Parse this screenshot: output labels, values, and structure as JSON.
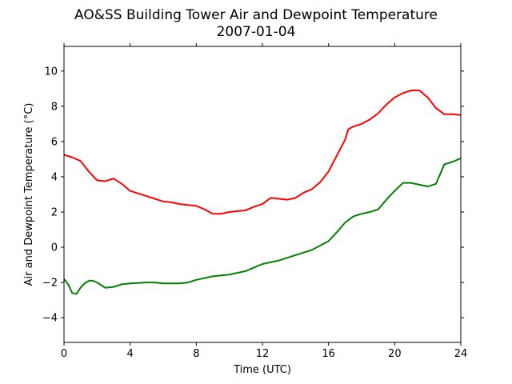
{
  "chart_data": {
    "type": "line",
    "title": "AO&SS Building Tower Air and Dewpoint Temperature",
    "subtitle": "2007-01-04",
    "xlabel": "Time (UTC)",
    "ylabel": "Air and Dewpoint Temperature (°C)",
    "xlim": [
      0,
      24
    ],
    "ylim": [
      -5.4,
      11.4
    ],
    "xticks": [
      0,
      4,
      8,
      12,
      16,
      20,
      24
    ],
    "yticks": [
      -4,
      -2,
      0,
      2,
      4,
      6,
      8,
      10
    ],
    "grid": false,
    "legend": "none",
    "series": [
      {
        "color": "#ff0000",
        "x": [
          0,
          0.5,
          1,
          1.5,
          2,
          2.5,
          3,
          3.5,
          4,
          4.5,
          5,
          5.5,
          6,
          6.5,
          7,
          7.5,
          8,
          8.5,
          9,
          9.5,
          10,
          10.5,
          11,
          11.5,
          12,
          12.5,
          13,
          13.5,
          14,
          14.5,
          15,
          15.5,
          16,
          16.5,
          17,
          17.2,
          17.5,
          18,
          18.5,
          19,
          19.5,
          20,
          20.5,
          21,
          21.5,
          22,
          22.5,
          23,
          23.5,
          24
        ],
        "y": [
          5.25,
          5.1,
          4.9,
          4.3,
          3.8,
          3.75,
          3.9,
          3.6,
          3.2,
          3.05,
          2.9,
          2.75,
          2.6,
          2.55,
          2.45,
          2.4,
          2.35,
          2.15,
          1.9,
          1.9,
          2.0,
          2.05,
          2.1,
          2.3,
          2.45,
          2.8,
          2.75,
          2.7,
          2.8,
          3.1,
          3.3,
          3.7,
          4.3,
          5.2,
          6.1,
          6.7,
          6.85,
          7.0,
          7.25,
          7.6,
          8.1,
          8.5,
          8.75,
          8.9,
          8.9,
          8.5,
          7.9,
          7.55,
          7.55,
          7.5
        ]
      },
      {
        "color": "#008000",
        "x": [
          0,
          0.25,
          0.5,
          0.75,
          1,
          1.25,
          1.5,
          1.75,
          2,
          2.5,
          3,
          3.5,
          4,
          5,
          5.5,
          6,
          7,
          7.5,
          8,
          9,
          10,
          11,
          12,
          13,
          14,
          15,
          16,
          16.5,
          17,
          17.5,
          18,
          18.5,
          19,
          19.5,
          20,
          20.5,
          21,
          21.5,
          22,
          22.5,
          23,
          23.5,
          24
        ],
        "y": [
          -1.8,
          -2.1,
          -2.6,
          -2.65,
          -2.3,
          -2.05,
          -1.9,
          -1.9,
          -2.0,
          -2.3,
          -2.25,
          -2.1,
          -2.05,
          -2.0,
          -2.0,
          -2.05,
          -2.05,
          -2.0,
          -1.85,
          -1.65,
          -1.55,
          -1.35,
          -0.95,
          -0.75,
          -0.45,
          -0.15,
          0.35,
          0.85,
          1.4,
          1.75,
          1.9,
          2.0,
          2.15,
          2.7,
          3.2,
          3.65,
          3.65,
          3.55,
          3.45,
          3.6,
          4.7,
          4.85,
          5.05
        ]
      }
    ]
  }
}
